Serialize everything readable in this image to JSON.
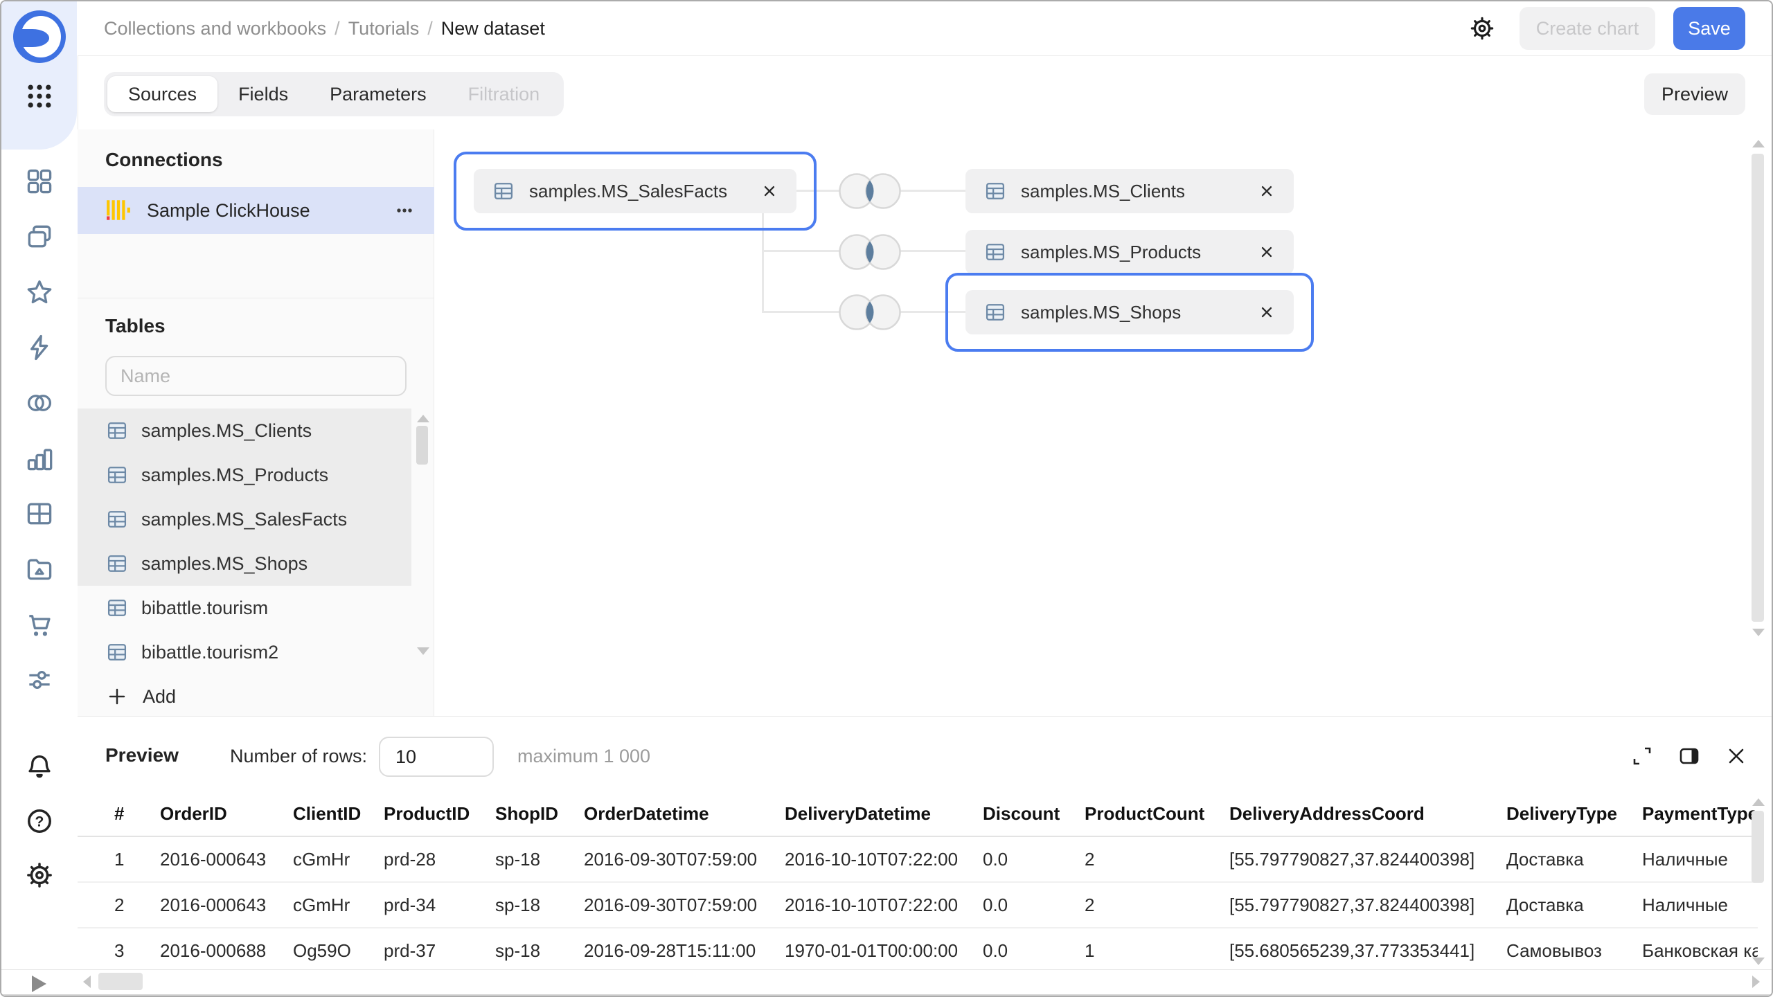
{
  "header": {
    "breadcrumb": {
      "items": [
        "Collections and workbooks",
        "Tutorials",
        "New dataset"
      ],
      "separator": "/"
    },
    "create_chart_label": "Create chart",
    "save_label": "Save"
  },
  "tabs": {
    "items": [
      {
        "label": "Sources",
        "state": "active"
      },
      {
        "label": "Fields",
        "state": "default"
      },
      {
        "label": "Parameters",
        "state": "default"
      },
      {
        "label": "Filtration",
        "state": "disabled"
      }
    ],
    "preview_button_label": "Preview"
  },
  "sidebar": {
    "icons": [
      "datalens-logo",
      "apps-grid-icon",
      "collections-icon",
      "workbooks-icon",
      "favorites-star-icon",
      "connections-lightning-icon",
      "datasets-venn-icon",
      "charts-bars-icon",
      "dashboards-grid-icon",
      "gallery-folder-icon",
      "marketplace-cart-icon",
      "settings-sliders-icon",
      "notifications-bell-icon",
      "help-icon",
      "settings-gear-icon",
      "expand-play-icon"
    ]
  },
  "connections_panel": {
    "title": "Connections",
    "items": [
      {
        "name": "Sample ClickHouse",
        "selected": true
      }
    ]
  },
  "tables_panel": {
    "title": "Tables",
    "search_placeholder": "Name",
    "items": [
      {
        "name": "samples.MS_Clients",
        "highlighted": true
      },
      {
        "name": "samples.MS_Products",
        "highlighted": true
      },
      {
        "name": "samples.MS_SalesFacts",
        "highlighted": true
      },
      {
        "name": "samples.MS_Shops",
        "highlighted": true
      },
      {
        "name": "bibattle.tourism",
        "highlighted": false
      },
      {
        "name": "bibattle.tourism2",
        "highlighted": false
      }
    ],
    "add_label": "Add"
  },
  "canvas": {
    "root_node": {
      "label": "samples.MS_SalesFacts",
      "highlighted": true
    },
    "join_type": "inner",
    "joined_nodes": [
      {
        "label": "samples.MS_Clients",
        "highlighted": false
      },
      {
        "label": "samples.MS_Products",
        "highlighted": false
      },
      {
        "label": "samples.MS_Shops",
        "highlighted": true
      }
    ]
  },
  "preview_panel": {
    "title": "Preview",
    "rows_label": "Number of rows:",
    "rows_value": "10",
    "max_label": "maximum 1 000",
    "table": {
      "columns": [
        "#",
        "OrderID",
        "ClientID",
        "ProductID",
        "ShopID",
        "OrderDatetime",
        "DeliveryDatetime",
        "Discount",
        "ProductCount",
        "DeliveryAddressCoord",
        "DeliveryType",
        "PaymentType"
      ],
      "rows": [
        [
          "1",
          "2016-000643",
          "cGmHr",
          "prd-28",
          "sp-18",
          "2016-09-30T07:59:00",
          "2016-10-10T07:22:00",
          "0.0",
          "2",
          "[55.797790827,37.824400398]",
          "Доставка",
          "Наличные"
        ],
        [
          "2",
          "2016-000643",
          "cGmHr",
          "prd-34",
          "sp-18",
          "2016-09-30T07:59:00",
          "2016-10-10T07:22:00",
          "0.0",
          "2",
          "[55.797790827,37.824400398]",
          "Доставка",
          "Наличные"
        ],
        [
          "3",
          "2016-000688",
          "Og59O",
          "prd-37",
          "sp-18",
          "2016-09-28T15:11:00",
          "1970-01-01T00:00:00",
          "0.0",
          "1",
          "[55.680565239,37.773353441]",
          "Самовывоз",
          "Банковская карта"
        ]
      ]
    }
  },
  "colors": {
    "accent_blue": "#4a7ae8",
    "selection_outline": "#4b7cf0",
    "selected_connection_bg": "#dbe2f8",
    "join_intersection": "#5d7e9e",
    "clickhouse_yellow": "#fec601",
    "clickhouse_red": "#f43b3b"
  }
}
